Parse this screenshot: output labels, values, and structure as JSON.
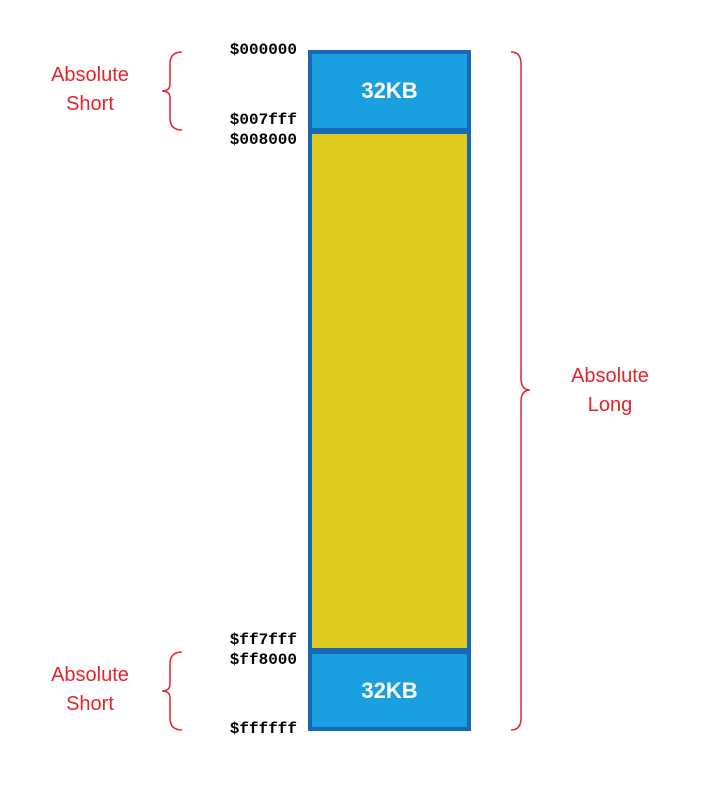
{
  "memory_map": {
    "addresses": {
      "a0": "$000000",
      "a1": "$007fff",
      "a2": "$008000",
      "a3": "$ff7fff",
      "a4": "$ff8000",
      "a5": "$ffffff"
    },
    "segments": {
      "top": {
        "label": "32KB",
        "color": "#1aa0e0"
      },
      "middle": {
        "label": "",
        "color": "#dfca1f"
      },
      "bottom": {
        "label": "32KB",
        "color": "#1aa0e0"
      },
      "border_color": "#1769b5"
    },
    "labels": {
      "top_short": {
        "line1": "Absolute",
        "line2": "Short"
      },
      "bottom_short": {
        "line1": "Absolute",
        "line2": "Short"
      },
      "long": {
        "line1": "Absolute",
        "line2": "Long"
      },
      "color": "#e3242b"
    }
  }
}
